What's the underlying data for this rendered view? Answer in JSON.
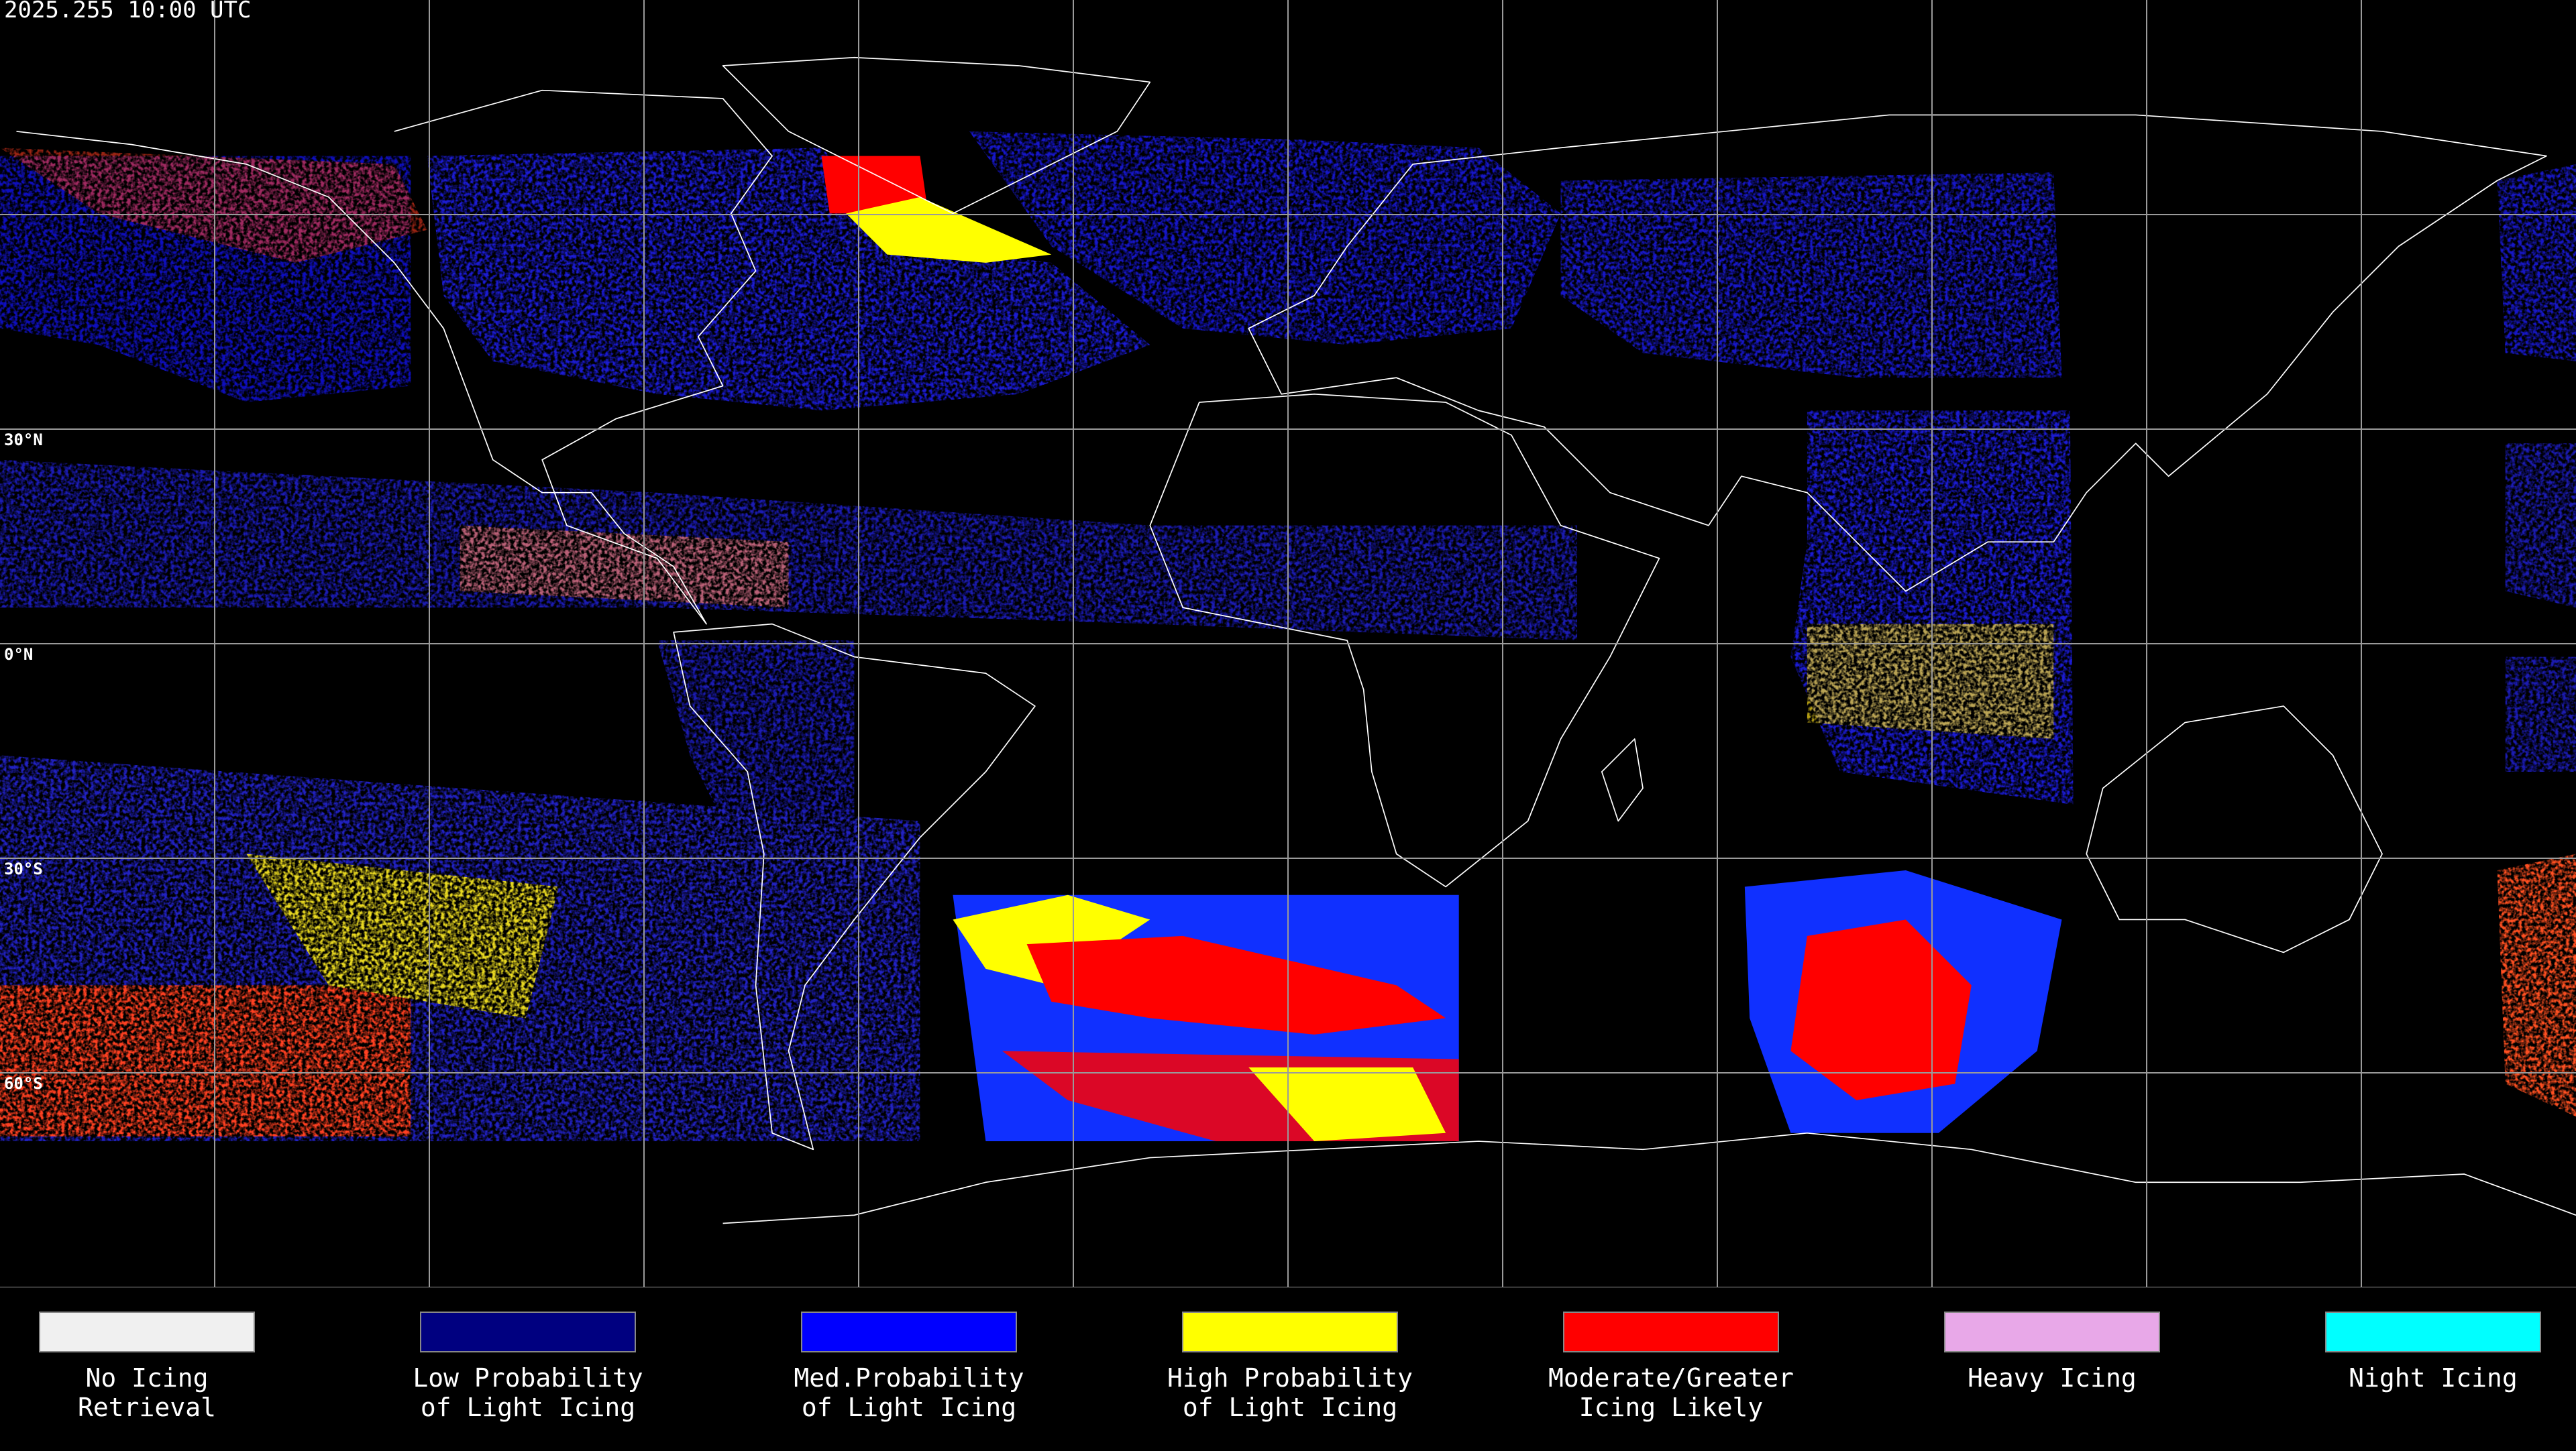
{
  "header": {
    "timestamp": "2025.255 10:00 UTC"
  },
  "map": {
    "latitude_labels": [
      "30°N",
      "0°N",
      "30°S",
      "60°S"
    ]
  },
  "legend": {
    "items": [
      {
        "label": [
          "No Icing",
          "Retrieval"
        ],
        "color": "#f0f0f0"
      },
      {
        "label": [
          "Low Probability",
          "of Light Icing"
        ],
        "color": "#000080"
      },
      {
        "label": [
          "Med.Probability",
          "of Light Icing"
        ],
        "color": "#0000ff"
      },
      {
        "label": [
          "High Probability",
          "of Light Icing"
        ],
        "color": "#ffff00"
      },
      {
        "label": [
          "Moderate/Greater",
          "Icing Likely"
        ],
        "color": "#ff0000"
      },
      {
        "label": [
          "Heavy Icing"
        ],
        "color": "#e8a8e8"
      },
      {
        "label": [
          "Night Icing"
        ],
        "color": "#00ffff"
      }
    ]
  }
}
